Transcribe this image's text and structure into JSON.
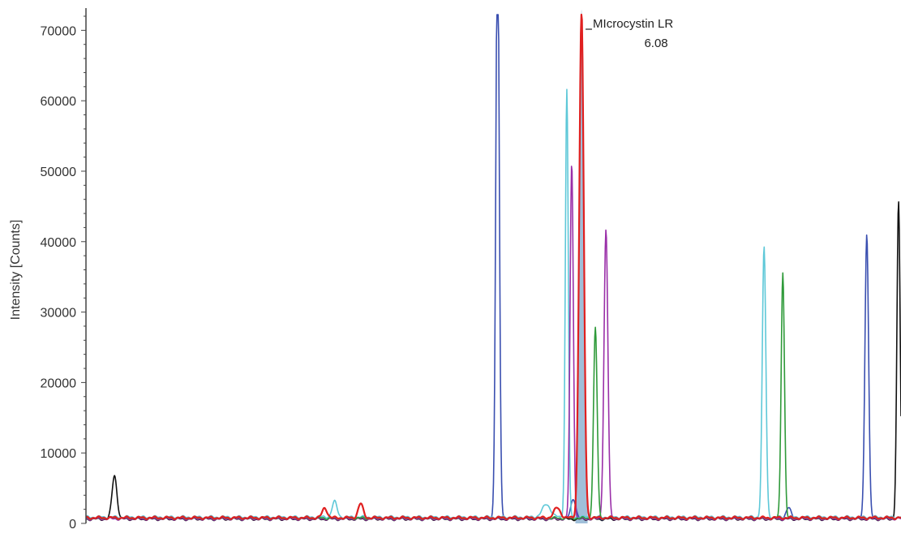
{
  "chart_data": {
    "type": "line",
    "title": "",
    "xlabel": "",
    "ylabel": "Intensity [Counts]",
    "ylim": [
      0,
      72000
    ],
    "yticks": [
      0,
      10000,
      20000,
      30000,
      40000,
      50000,
      60000,
      70000
    ],
    "ytick_labels": [
      "0",
      "10000",
      "20000",
      "30000",
      "40000",
      "50000",
      "60000",
      "70000"
    ],
    "grid": false,
    "legend": "none",
    "x_units_note": "retention time",
    "xlim": [
      0,
      10
    ],
    "highlight_peak": {
      "label": "MIcrocystin LR",
      "value": "6.08",
      "rt": 6.08,
      "height": 72000,
      "color": "#e02020",
      "fill": "#8fb4d2"
    },
    "series": [
      {
        "color": "#111111",
        "baseline": 600,
        "peaks": [
          {
            "rt": 0.35,
            "height": 6200,
            "width": 0.03
          },
          {
            "rt": 9.97,
            "height": 45000,
            "width": 0.02
          }
        ]
      },
      {
        "color": "#3a4fb0",
        "baseline": 700,
        "peaks": [
          {
            "rt": 5.05,
            "height": 61500,
            "width": 0.022
          },
          {
            "rt": 5.05,
            "height": 24500,
            "width": 0.018
          },
          {
            "rt": 5.98,
            "height": 2800,
            "width": 0.03
          },
          {
            "rt": 9.58,
            "height": 35500,
            "width": 0.022
          },
          {
            "rt": 9.58,
            "height": 5000,
            "width": 0.025
          },
          {
            "rt": 8.62,
            "height": 1500,
            "width": 0.03
          }
        ]
      },
      {
        "color": "#5ec8d8",
        "baseline": 900,
        "peaks": [
          {
            "rt": 3.05,
            "height": 2200,
            "width": 0.03
          },
          {
            "rt": 5.9,
            "height": 54200,
            "width": 0.018
          },
          {
            "rt": 5.9,
            "height": 6500,
            "width": 0.02
          },
          {
            "rt": 5.65,
            "height": 1800,
            "width": 0.05
          },
          {
            "rt": 8.32,
            "height": 38300,
            "width": 0.022
          }
        ]
      },
      {
        "color": "#9a2fa8",
        "baseline": 650,
        "peaks": [
          {
            "rt": 5.96,
            "height": 50500,
            "width": 0.02
          },
          {
            "rt": 6.38,
            "height": 41000,
            "width": 0.024
          }
        ]
      },
      {
        "color": "#2f9a3a",
        "baseline": 750,
        "peaks": [
          {
            "rt": 6.25,
            "height": 27000,
            "width": 0.022
          },
          {
            "rt": 8.55,
            "height": 35000,
            "width": 0.02
          }
        ]
      },
      {
        "color": "#e02020",
        "baseline": 800,
        "peaks": [
          {
            "rt": 2.93,
            "height": 1400,
            "width": 0.03
          },
          {
            "rt": 3.37,
            "height": 2000,
            "width": 0.03
          },
          {
            "rt": 6.08,
            "height": 72000,
            "width": 0.028
          },
          {
            "rt": 5.78,
            "height": 1400,
            "width": 0.04
          }
        ]
      }
    ]
  }
}
